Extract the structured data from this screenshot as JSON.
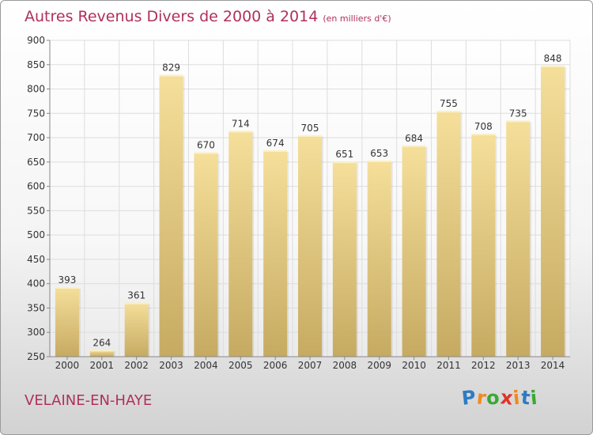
{
  "chart_data": {
    "type": "bar",
    "title": "Autres Revenus Divers de 2000 à 2014",
    "subtitle": "(en milliers d'€)",
    "categories": [
      "2000",
      "2001",
      "2002",
      "2003",
      "2004",
      "2005",
      "2006",
      "2007",
      "2008",
      "2009",
      "2010",
      "2011",
      "2012",
      "2013",
      "2014"
    ],
    "values": [
      393,
      264,
      361,
      829,
      670,
      714,
      674,
      705,
      651,
      653,
      684,
      755,
      708,
      735,
      848
    ],
    "ylim": [
      250,
      900
    ],
    "yticks": [
      250,
      300,
      350,
      400,
      450,
      500,
      550,
      600,
      650,
      700,
      750,
      800,
      850,
      900
    ],
    "grid": true,
    "colors": {
      "bar_top": "#f5df9a",
      "bar_bottom": "#c6aa62",
      "grid": "#dddddd",
      "text": "#b0305a"
    }
  },
  "footer": {
    "location": "VELAINE-EN-HAYE",
    "brand_letters": [
      "P",
      "r",
      "o",
      "x",
      "i",
      "t",
      "i"
    ],
    "brand_colors": [
      "#2e7bc2",
      "#f08a1c",
      "#3aa935",
      "#e0322b",
      "#f08a1c",
      "#2e7bc2",
      "#3aa935"
    ]
  }
}
